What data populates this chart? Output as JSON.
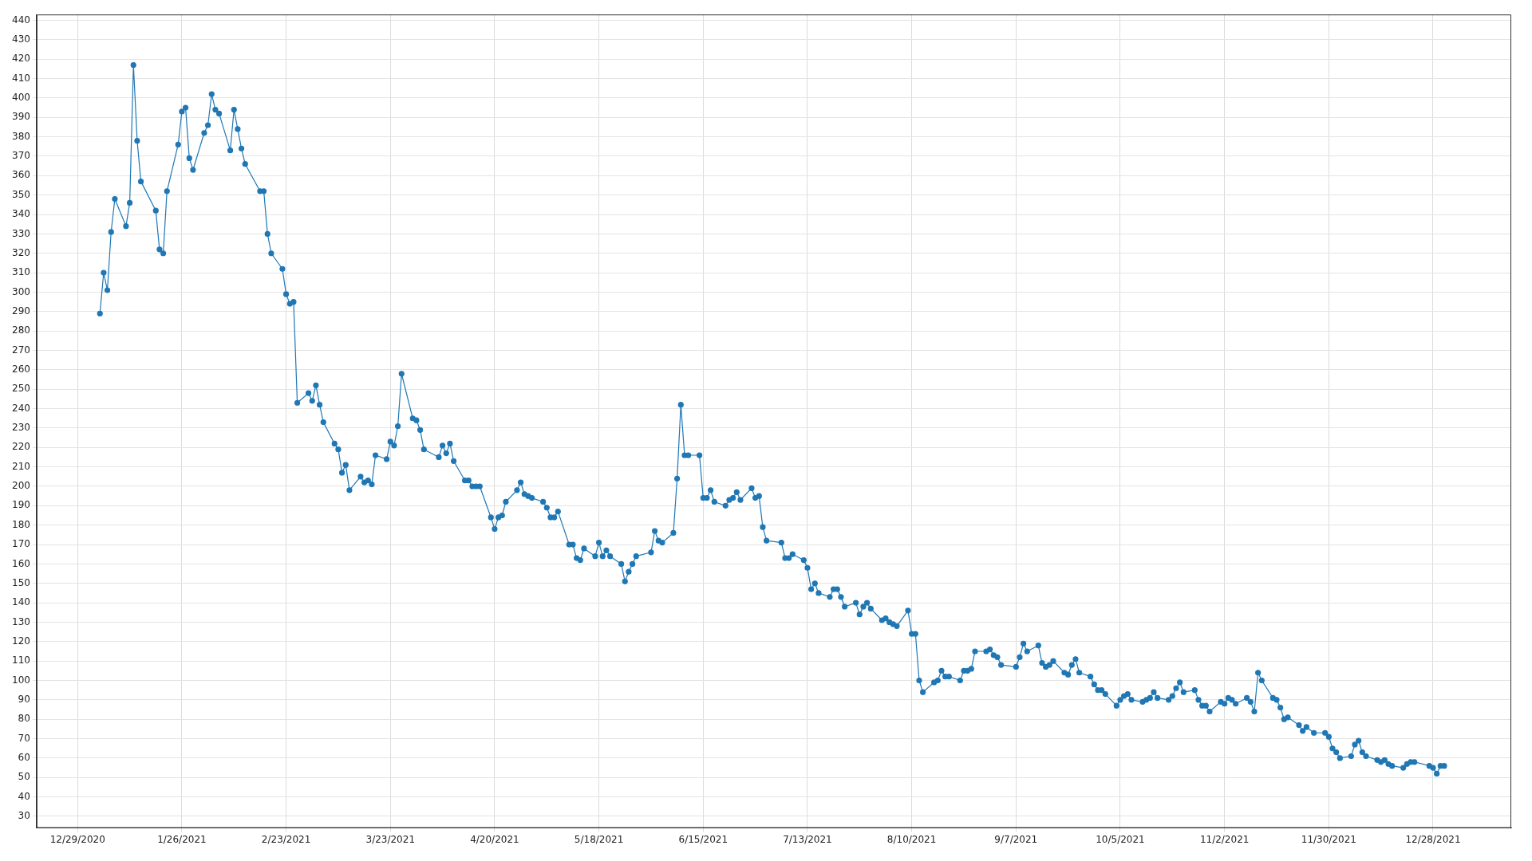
{
  "chart_data": {
    "type": "line",
    "marker": "circle",
    "line_style": "solid",
    "grid": true,
    "xlim": [
      "2020-12-18",
      "2022-01-18"
    ],
    "xticks": [
      {
        "value": "2020-12-29",
        "label": "12/29/2020"
      },
      {
        "value": "2021-01-26",
        "label": "1/26/2021"
      },
      {
        "value": "2021-02-23",
        "label": "2/23/2021"
      },
      {
        "value": "2021-03-23",
        "label": "3/23/2021"
      },
      {
        "value": "2021-04-20",
        "label": "4/20/2021"
      },
      {
        "value": "2021-05-18",
        "label": "5/18/2021"
      },
      {
        "value": "2021-06-15",
        "label": "6/15/2021"
      },
      {
        "value": "2021-07-13",
        "label": "7/13/2021"
      },
      {
        "value": "2021-08-10",
        "label": "8/10/2021"
      },
      {
        "value": "2021-09-07",
        "label": "9/7/2021"
      },
      {
        "value": "2021-10-05",
        "label": "10/5/2021"
      },
      {
        "value": "2021-11-02",
        "label": "11/2/2021"
      },
      {
        "value": "2021-11-30",
        "label": "11/30/2021"
      },
      {
        "value": "2021-12-28",
        "label": "12/28/2021"
      }
    ],
    "ylim": [
      24,
      443
    ],
    "yticks": [
      30,
      40,
      50,
      60,
      70,
      80,
      90,
      100,
      110,
      120,
      130,
      140,
      150,
      160,
      170,
      180,
      190,
      200,
      210,
      220,
      230,
      240,
      250,
      260,
      270,
      280,
      290,
      300,
      310,
      320,
      330,
      340,
      350,
      360,
      370,
      380,
      390,
      400,
      410,
      420,
      430,
      440
    ],
    "series": [
      {
        "color": "#1f77b4",
        "x": [
          "2021-01-04",
          "2021-01-05",
          "2021-01-06",
          "2021-01-07",
          "2021-01-08",
          "2021-01-11",
          "2021-01-12",
          "2021-01-13",
          "2021-01-14",
          "2021-01-15",
          "2021-01-19",
          "2021-01-20",
          "2021-01-21",
          "2021-01-22",
          "2021-01-25",
          "2021-01-26",
          "2021-01-27",
          "2021-01-28",
          "2021-01-29",
          "2021-02-01",
          "2021-02-02",
          "2021-02-03",
          "2021-02-04",
          "2021-02-05",
          "2021-02-08",
          "2021-02-09",
          "2021-02-10",
          "2021-02-11",
          "2021-02-12",
          "2021-02-16",
          "2021-02-17",
          "2021-02-18",
          "2021-02-19",
          "2021-02-22",
          "2021-02-23",
          "2021-02-24",
          "2021-02-25",
          "2021-02-26",
          "2021-03-01",
          "2021-03-02",
          "2021-03-03",
          "2021-03-04",
          "2021-03-05",
          "2021-03-08",
          "2021-03-09",
          "2021-03-10",
          "2021-03-11",
          "2021-03-12",
          "2021-03-15",
          "2021-03-16",
          "2021-03-17",
          "2021-03-18",
          "2021-03-19",
          "2021-03-22",
          "2021-03-23",
          "2021-03-24",
          "2021-03-25",
          "2021-03-26",
          "2021-03-29",
          "2021-03-30",
          "2021-03-31",
          "2021-04-01",
          "2021-04-05",
          "2021-04-06",
          "2021-04-07",
          "2021-04-08",
          "2021-04-09",
          "2021-04-12",
          "2021-04-13",
          "2021-04-14",
          "2021-04-15",
          "2021-04-16",
          "2021-04-19",
          "2021-04-20",
          "2021-04-21",
          "2021-04-22",
          "2021-04-23",
          "2021-04-26",
          "2021-04-27",
          "2021-04-28",
          "2021-04-29",
          "2021-04-30",
          "2021-05-03",
          "2021-05-04",
          "2021-05-05",
          "2021-05-06",
          "2021-05-07",
          "2021-05-10",
          "2021-05-11",
          "2021-05-12",
          "2021-05-13",
          "2021-05-14",
          "2021-05-17",
          "2021-05-18",
          "2021-05-19",
          "2021-05-20",
          "2021-05-21",
          "2021-05-24",
          "2021-05-25",
          "2021-05-26",
          "2021-05-27",
          "2021-05-28",
          "2021-06-01",
          "2021-06-02",
          "2021-06-03",
          "2021-06-04",
          "2021-06-07",
          "2021-06-08",
          "2021-06-09",
          "2021-06-10",
          "2021-06-11",
          "2021-06-14",
          "2021-06-15",
          "2021-06-16",
          "2021-06-17",
          "2021-06-18",
          "2021-06-21",
          "2021-06-22",
          "2021-06-23",
          "2021-06-24",
          "2021-06-25",
          "2021-06-28",
          "2021-06-29",
          "2021-06-30",
          "2021-07-01",
          "2021-07-02",
          "2021-07-06",
          "2021-07-07",
          "2021-07-08",
          "2021-07-09",
          "2021-07-12",
          "2021-07-13",
          "2021-07-14",
          "2021-07-15",
          "2021-07-16",
          "2021-07-19",
          "2021-07-20",
          "2021-07-21",
          "2021-07-22",
          "2021-07-23",
          "2021-07-26",
          "2021-07-27",
          "2021-07-28",
          "2021-07-29",
          "2021-07-30",
          "2021-08-02",
          "2021-08-03",
          "2021-08-04",
          "2021-08-05",
          "2021-08-06",
          "2021-08-09",
          "2021-08-10",
          "2021-08-11",
          "2021-08-12",
          "2021-08-13",
          "2021-08-16",
          "2021-08-17",
          "2021-08-18",
          "2021-08-19",
          "2021-08-20",
          "2021-08-23",
          "2021-08-24",
          "2021-08-25",
          "2021-08-26",
          "2021-08-27",
          "2021-08-30",
          "2021-08-31",
          "2021-09-01",
          "2021-09-02",
          "2021-09-03",
          "2021-09-07",
          "2021-09-08",
          "2021-09-09",
          "2021-09-10",
          "2021-09-13",
          "2021-09-14",
          "2021-09-15",
          "2021-09-16",
          "2021-09-17",
          "2021-09-20",
          "2021-09-21",
          "2021-09-22",
          "2021-09-23",
          "2021-09-24",
          "2021-09-27",
          "2021-09-28",
          "2021-09-29",
          "2021-09-30",
          "2021-10-01",
          "2021-10-04",
          "2021-10-05",
          "2021-10-06",
          "2021-10-07",
          "2021-10-08",
          "2021-10-11",
          "2021-10-12",
          "2021-10-13",
          "2021-10-14",
          "2021-10-15",
          "2021-10-18",
          "2021-10-19",
          "2021-10-20",
          "2021-10-21",
          "2021-10-22",
          "2021-10-25",
          "2021-10-26",
          "2021-10-27",
          "2021-10-28",
          "2021-10-29",
          "2021-11-01",
          "2021-11-02",
          "2021-11-03",
          "2021-11-04",
          "2021-11-05",
          "2021-11-08",
          "2021-11-09",
          "2021-11-10",
          "2021-11-11",
          "2021-11-12",
          "2021-11-15",
          "2021-11-16",
          "2021-11-17",
          "2021-11-18",
          "2021-11-19",
          "2021-11-22",
          "2021-11-23",
          "2021-11-24",
          "2021-11-26",
          "2021-11-29",
          "2021-11-30",
          "2021-12-01",
          "2021-12-02",
          "2021-12-03",
          "2021-12-06",
          "2021-12-07",
          "2021-12-08",
          "2021-12-09",
          "2021-12-10",
          "2021-12-13",
          "2021-12-14",
          "2021-12-15",
          "2021-12-16",
          "2021-12-17",
          "2021-12-20",
          "2021-12-21",
          "2021-12-22",
          "2021-12-23",
          "2021-12-27",
          "2021-12-28",
          "2021-12-29",
          "2021-12-30",
          "2021-12-31"
        ],
        "values": [
          289,
          310,
          301,
          331,
          348,
          334,
          346,
          417,
          378,
          357,
          342,
          322,
          320,
          352,
          376,
          393,
          395,
          369,
          363,
          382,
          386,
          402,
          394,
          392,
          373,
          394,
          384,
          374,
          366,
          352,
          352,
          330,
          320,
          312,
          299,
          294,
          295,
          243,
          248,
          244,
          252,
          242,
          233,
          222,
          219,
          207,
          211,
          198,
          205,
          202,
          203,
          201,
          216,
          214,
          223,
          221,
          231,
          258,
          235,
          234,
          229,
          219,
          215,
          221,
          217,
          222,
          213,
          203,
          203,
          200,
          200,
          200,
          184,
          178,
          184,
          185,
          192,
          198,
          202,
          196,
          195,
          194,
          192,
          189,
          184,
          184,
          187,
          170,
          170,
          163,
          162,
          168,
          164,
          171,
          164,
          167,
          164,
          160,
          151,
          156,
          160,
          164,
          166,
          177,
          172,
          171,
          176,
          204,
          242,
          216,
          216,
          216,
          194,
          194,
          198,
          192,
          190,
          193,
          194,
          197,
          193,
          199,
          194,
          195,
          179,
          172,
          171,
          163,
          163,
          165,
          162,
          158,
          147,
          150,
          145,
          143,
          147,
          147,
          143,
          138,
          140,
          134,
          138,
          140,
          137,
          131,
          132,
          130,
          129,
          128,
          136,
          124,
          124,
          100,
          94,
          99,
          100,
          105,
          102,
          102,
          100,
          105,
          105,
          106,
          115,
          115,
          116,
          113,
          112,
          108,
          107,
          112,
          119,
          115,
          118,
          109,
          107,
          108,
          110,
          104,
          103,
          108,
          111,
          104,
          102,
          98,
          95,
          95,
          93,
          87,
          90,
          92,
          93,
          90,
          89,
          90,
          91,
          94,
          91,
          90,
          92,
          96,
          99,
          94,
          95,
          90,
          87,
          87,
          84,
          89,
          88,
          91,
          90,
          88,
          91,
          89,
          84,
          104,
          100,
          91,
          90,
          86,
          80,
          81,
          77,
          74,
          76,
          73,
          73,
          71,
          65,
          63,
          60,
          61,
          67,
          69,
          63,
          61,
          59,
          58,
          59,
          57,
          56,
          55,
          57,
          58,
          58,
          56,
          55,
          52,
          56,
          56
        ]
      }
    ]
  }
}
